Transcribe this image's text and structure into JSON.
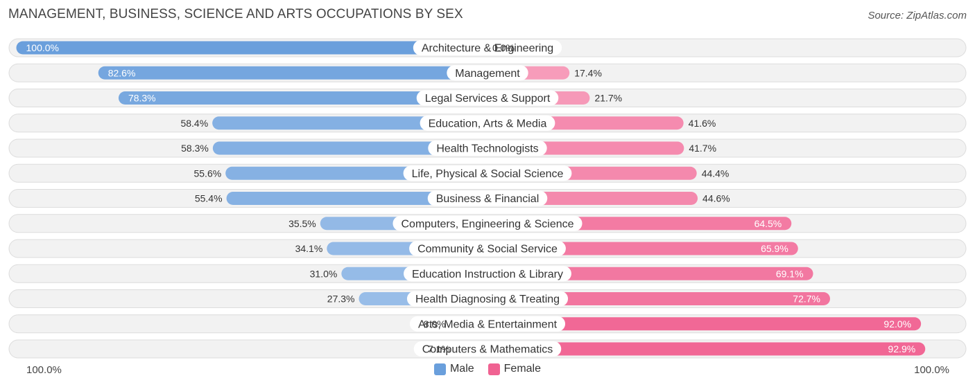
{
  "title": "MANAGEMENT, BUSINESS, SCIENCE AND ARTS OCCUPATIONS BY SEX",
  "source": "Source: ZipAtlas.com",
  "colors": {
    "male": "#6a9fdc",
    "male_light": "#a9c8ec",
    "female": "#f06292",
    "female_light": "#f8a8c3"
  },
  "legend": {
    "male_label": "Male",
    "female_label": "Female"
  },
  "axis": {
    "left_label": "100.0%",
    "right_label": "100.0%"
  },
  "chart_data": {
    "type": "bar",
    "orientation": "horizontal-diverging",
    "title": "MANAGEMENT, BUSINESS, SCIENCE AND ARTS OCCUPATIONS BY SEX",
    "xlim": [
      0,
      100
    ],
    "categories": [
      "Architecture & Engineering",
      "Management",
      "Legal Services & Support",
      "Education, Arts & Media",
      "Health Technologists",
      "Life, Physical & Social Science",
      "Business & Financial",
      "Computers, Engineering & Science",
      "Community & Social Service",
      "Education Instruction & Library",
      "Health Diagnosing & Treating",
      "Arts, Media & Entertainment",
      "Computers & Mathematics"
    ],
    "series": [
      {
        "name": "Male",
        "values": [
          100.0,
          82.6,
          78.3,
          58.4,
          58.3,
          55.6,
          55.4,
          35.5,
          34.1,
          31.0,
          27.3,
          8.0,
          7.1
        ],
        "labels": [
          "100.0%",
          "82.6%",
          "78.3%",
          "58.4%",
          "58.3%",
          "55.6%",
          "55.4%",
          "35.5%",
          "34.1%",
          "31.0%",
          "27.3%",
          "8.0%",
          "7.1%"
        ]
      },
      {
        "name": "Female",
        "values": [
          0.0,
          17.4,
          21.7,
          41.6,
          41.7,
          44.4,
          44.6,
          64.5,
          65.9,
          69.1,
          72.7,
          92.0,
          92.9
        ],
        "labels": [
          "0.0%",
          "17.4%",
          "21.7%",
          "41.6%",
          "41.7%",
          "44.4%",
          "44.6%",
          "64.5%",
          "65.9%",
          "69.1%",
          "72.7%",
          "92.0%",
          "92.9%"
        ]
      }
    ]
  }
}
